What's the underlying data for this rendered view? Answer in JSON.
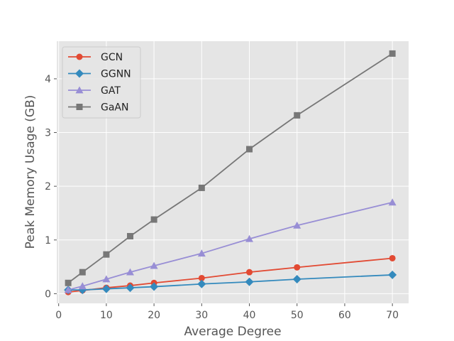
{
  "chart_data": {
    "type": "line",
    "title": "",
    "xlabel": "Average Degree",
    "ylabel": "Peak Memory Usage (GB)",
    "xlim": [
      -0.4,
      73.4
    ],
    "ylim": [
      -0.18,
      4.7
    ],
    "xticks": [
      0,
      10,
      20,
      30,
      40,
      50,
      60,
      70
    ],
    "yticks": [
      0,
      1,
      2,
      3,
      4
    ],
    "grid": true,
    "legend_position": "top-left",
    "x": [
      2,
      5,
      10,
      15,
      20,
      30,
      40,
      50,
      70
    ],
    "series": [
      {
        "name": "GCN",
        "color": "#E24A33",
        "marker": "circle",
        "values": [
          0.03,
          0.06,
          0.11,
          0.15,
          0.2,
          0.29,
          0.4,
          0.49,
          0.66
        ]
      },
      {
        "name": "GGNN",
        "color": "#348ABD",
        "marker": "diamond",
        "values": [
          0.07,
          0.07,
          0.09,
          0.11,
          0.13,
          0.18,
          0.22,
          0.27,
          0.35
        ]
      },
      {
        "name": "GAT",
        "color": "#988ED5",
        "marker": "triangle",
        "values": [
          0.07,
          0.14,
          0.27,
          0.4,
          0.52,
          0.75,
          1.02,
          1.27,
          1.7
        ]
      },
      {
        "name": "GaAN",
        "color": "#777777",
        "marker": "square",
        "values": [
          0.2,
          0.4,
          0.73,
          1.07,
          1.38,
          1.97,
          2.69,
          3.32,
          4.47
        ]
      }
    ]
  }
}
